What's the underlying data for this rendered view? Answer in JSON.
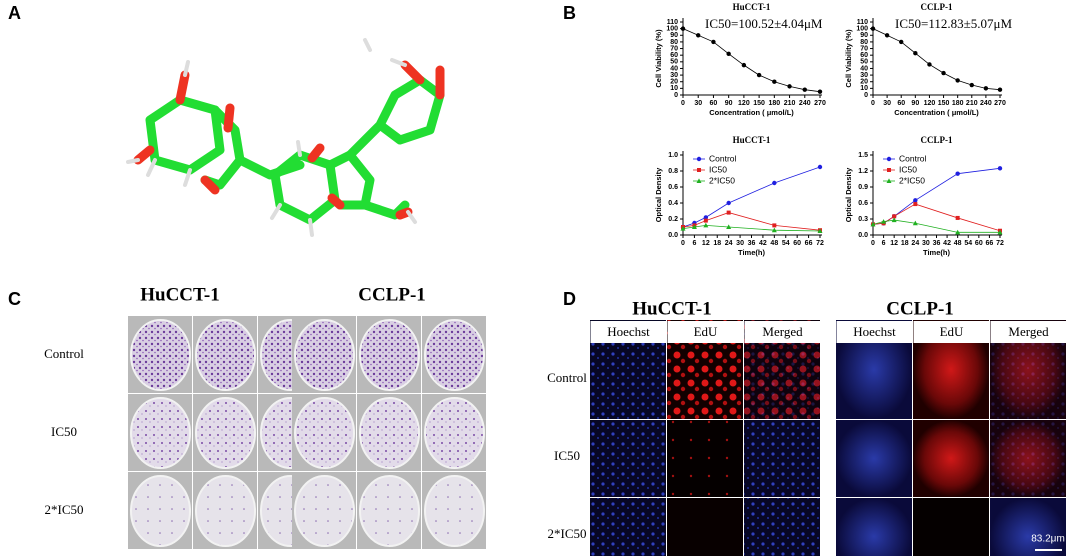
{
  "panel_labels": [
    "A",
    "B",
    "C",
    "D"
  ],
  "colony": {
    "titles": [
      "HuCCT-1",
      "CCLP-1"
    ],
    "rows": [
      "Control",
      "IC50",
      "2*IC50"
    ]
  },
  "edu": {
    "titles": [
      "HuCCT-1",
      "CCLP-1"
    ],
    "columns": [
      "Hoechst",
      "EdU",
      "Merged"
    ],
    "rows": [
      "Control",
      "IC50",
      "2*IC50"
    ],
    "scale_bar": "83.2μm"
  },
  "chart_data": [
    {
      "type": "line",
      "title": "HuCCT-1",
      "annotation": "IC50=100.52±4.04μM",
      "xlabel": "Concentration ( μmol/L)",
      "ylabel": "Cell Viability (%)",
      "x": [
        0,
        30,
        60,
        90,
        120,
        150,
        180,
        210,
        240,
        270
      ],
      "series": [
        {
          "color": "#000000",
          "marker": "circle",
          "values": [
            100,
            90,
            80,
            62,
            45,
            30,
            20,
            13,
            8,
            5
          ]
        }
      ],
      "xlim": [
        0,
        270
      ],
      "xticks": [
        0,
        30,
        60,
        90,
        120,
        150,
        180,
        210,
        240,
        270
      ],
      "ylim": [
        0,
        110
      ],
      "yticks": [
        0,
        10,
        20,
        30,
        40,
        50,
        60,
        70,
        80,
        90,
        100,
        110
      ]
    },
    {
      "type": "line",
      "title": "CCLP-1",
      "annotation": "IC50=112.83±5.07μM",
      "xlabel": "Concentration ( μmol/L)",
      "ylabel": "Cell Viability (%)",
      "x": [
        0,
        30,
        60,
        90,
        120,
        150,
        180,
        210,
        240,
        270
      ],
      "series": [
        {
          "color": "#000000",
          "marker": "circle",
          "values": [
            100,
            90,
            80,
            63,
            46,
            33,
            22,
            15,
            10,
            8
          ]
        }
      ],
      "xlim": [
        0,
        270
      ],
      "xticks": [
        0,
        30,
        60,
        90,
        120,
        150,
        180,
        210,
        240,
        270
      ],
      "ylim": [
        0,
        110
      ],
      "yticks": [
        0,
        10,
        20,
        30,
        40,
        50,
        60,
        70,
        80,
        90,
        100,
        110
      ]
    },
    {
      "type": "line",
      "title": "HuCCT-1",
      "xlabel": "Time(h)",
      "ylabel": "Optical Density",
      "legend": "top-left",
      "x": [
        0,
        6,
        12,
        24,
        48,
        72
      ],
      "series": [
        {
          "name": "Control",
          "color": "#1f1fe0",
          "marker": "circle",
          "values": [
            0.1,
            0.15,
            0.22,
            0.4,
            0.65,
            0.85
          ]
        },
        {
          "name": "IC50",
          "color": "#e02020",
          "marker": "square",
          "values": [
            0.1,
            0.12,
            0.18,
            0.28,
            0.12,
            0.06
          ]
        },
        {
          "name": "2*IC50",
          "color": "#20b020",
          "marker": "triangle",
          "values": [
            0.08,
            0.1,
            0.12,
            0.1,
            0.06,
            0.05
          ]
        }
      ],
      "xlim": [
        0,
        72
      ],
      "xticks": [
        0,
        6,
        12,
        18,
        24,
        30,
        36,
        42,
        48,
        54,
        60,
        66,
        72
      ],
      "ylim": [
        0,
        1.0
      ],
      "yticks": [
        {
          "value": 0,
          "label": "0.0"
        },
        0.2,
        0.4,
        0.6,
        0.8,
        {
          "value": 1.0,
          "label": "1.0"
        }
      ]
    },
    {
      "type": "line",
      "title": "CCLP-1",
      "xlabel": "Time(h)",
      "ylabel": "Optical Density",
      "legend": "top-left",
      "x": [
        0,
        6,
        12,
        24,
        48,
        72
      ],
      "series": [
        {
          "name": "Control",
          "color": "#1f1fe0",
          "marker": "circle",
          "values": [
            0.2,
            0.22,
            0.35,
            0.65,
            1.15,
            1.25
          ]
        },
        {
          "name": "IC50",
          "color": "#e02020",
          "marker": "square",
          "values": [
            0.2,
            0.22,
            0.35,
            0.58,
            0.32,
            0.08
          ]
        },
        {
          "name": "2*IC50",
          "color": "#20b020",
          "marker": "triangle",
          "values": [
            0.2,
            0.25,
            0.28,
            0.22,
            0.05,
            0.05
          ]
        }
      ],
      "xlim": [
        0,
        72
      ],
      "xticks": [
        0,
        6,
        12,
        18,
        24,
        30,
        36,
        42,
        48,
        54,
        60,
        66,
        72
      ],
      "ylim": [
        0,
        1.5
      ],
      "yticks": [
        {
          "value": 0,
          "label": "0.0"
        },
        0.3,
        0.6,
        0.9,
        1.2,
        1.5
      ]
    }
  ]
}
